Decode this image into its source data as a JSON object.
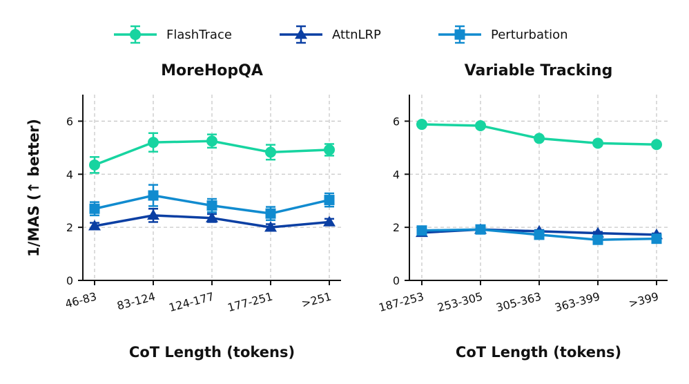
{
  "chart_data": {
    "type": "line",
    "legend": {
      "placement": "top-center",
      "entries": [
        {
          "name": "FlashTrace",
          "color": "#17d4a0",
          "marker": "circle"
        },
        {
          "name": "AttnLRP",
          "color": "#0b3fa3",
          "marker": "triangle"
        },
        {
          "name": "Perturbation",
          "color": "#118bcf",
          "marker": "square"
        }
      ]
    },
    "ylabel": "1/MAS (↑ better)",
    "ylim": [
      0,
      7
    ],
    "yticks": [
      0,
      2,
      4,
      6
    ],
    "grid": true,
    "panels": [
      {
        "title": "MoreHopQA",
        "xlabel": "CoT Length (tokens)",
        "categories": [
          "46-83",
          "83-124",
          "124-177",
          "177-251",
          ">251"
        ],
        "series": [
          {
            "name": "FlashTrace",
            "values": [
              4.35,
              5.2,
              5.25,
              4.83,
              4.92
            ],
            "errors": [
              0.3,
              0.35,
              0.25,
              0.28,
              0.22
            ]
          },
          {
            "name": "AttnLRP",
            "values": [
              2.05,
              2.45,
              2.35,
              2.0,
              2.2
            ],
            "errors": [
              0.12,
              0.25,
              0.15,
              0.12,
              0.12
            ]
          },
          {
            "name": "Perturbation",
            "values": [
              2.7,
              3.2,
              2.82,
              2.52,
              3.03
            ],
            "errors": [
              0.25,
              0.4,
              0.25,
              0.25,
              0.25
            ]
          }
        ]
      },
      {
        "title": "Variable Tracking",
        "xlabel": "CoT Length (tokens)",
        "categories": [
          "187-253",
          "253-305",
          "305-363",
          "363-399",
          ">399"
        ],
        "series": [
          {
            "name": "FlashTrace",
            "values": [
              5.88,
              5.83,
              5.35,
              5.17,
              5.12
            ],
            "errors": [
              0.05,
              0.05,
              0.05,
              0.05,
              0.05
            ]
          },
          {
            "name": "AttnLRP",
            "values": [
              1.8,
              1.92,
              1.85,
              1.78,
              1.72
            ],
            "errors": [
              0.05,
              0.05,
              0.05,
              0.05,
              0.05
            ]
          },
          {
            "name": "Perturbation",
            "values": [
              1.88,
              1.92,
              1.72,
              1.53,
              1.57
            ],
            "errors": [
              0.05,
              0.05,
              0.05,
              0.05,
              0.05
            ]
          }
        ]
      }
    ]
  }
}
